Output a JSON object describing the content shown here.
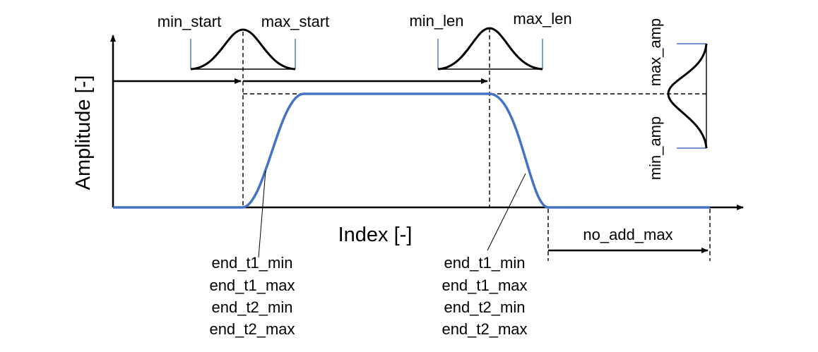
{
  "axes": {
    "x_label": "Index [-]",
    "y_label": "Amplitude [-]"
  },
  "annotations": {
    "min_start": "min_start",
    "max_start": "max_start",
    "min_len": "min_len",
    "max_len": "max_len",
    "max_amp": "max_amp",
    "min_amp": "min_amp",
    "no_add_max": "no_add_max",
    "left_end_params": [
      "end_t1_min",
      "end_t1_max",
      "end_t2_min",
      "end_t2_max"
    ],
    "right_end_params": [
      "end_t1_min",
      "end_t1_max",
      "end_t2_min",
      "end_t2_max"
    ]
  },
  "colors": {
    "signal": "#4472c4",
    "markers": "#4472c4",
    "ink": "#000000"
  }
}
